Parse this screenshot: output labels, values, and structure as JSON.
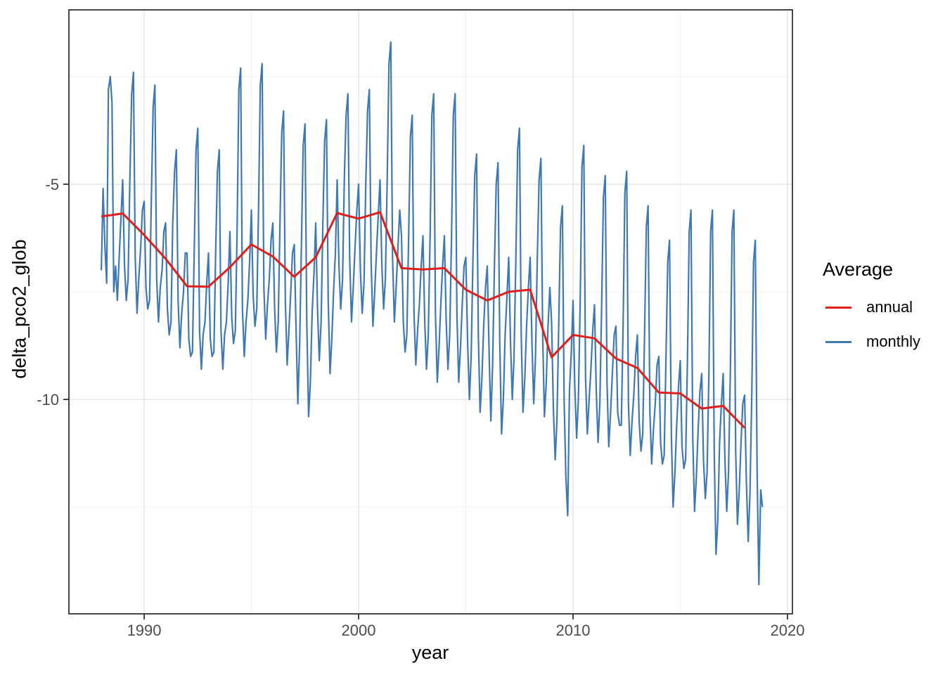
{
  "chart_data": {
    "type": "line",
    "title": "",
    "xlabel": "year",
    "ylabel": "delta_pco2_glob",
    "legend_title": "Average",
    "legend_position": "right",
    "grid": "major-and-minor",
    "xlim": [
      1986.49,
      2020.23
    ],
    "ylim": [
      -14.98,
      -0.95
    ],
    "x_major_ticks": [
      1990,
      2000,
      2010,
      2020
    ],
    "x_minor_ticks": [
      1995,
      2005,
      2015
    ],
    "y_major_ticks": [
      -5,
      -10
    ],
    "y_minor_ticks": [
      -2.5,
      -7.5,
      -12.5
    ],
    "colors": {
      "annual": "#df201a",
      "monthly": "#3e79b4"
    },
    "series": [
      {
        "name": "annual",
        "color": "#df201a",
        "years": [
          1988,
          1989,
          1990,
          1991,
          1992,
          1993,
          1994,
          1995,
          1996,
          1997,
          1998,
          1999,
          2000,
          2001,
          2002,
          2003,
          2004,
          2005,
          2006,
          2007,
          2008,
          2009,
          2010,
          2011,
          2012,
          2013,
          2014,
          2015,
          2016,
          2017,
          2018
        ],
        "values": [
          -5.75,
          -5.68,
          -6.18,
          -6.73,
          -7.37,
          -7.38,
          -6.93,
          -6.4,
          -6.68,
          -7.15,
          -6.7,
          -5.67,
          -5.8,
          -5.65,
          -6.95,
          -6.98,
          -6.95,
          -7.45,
          -7.7,
          -7.5,
          -7.45,
          -9.02,
          -8.5,
          -8.58,
          -9.05,
          -9.27,
          -9.84,
          -9.86,
          -10.21,
          -10.15,
          -10.66
        ]
      },
      {
        "name": "monthly",
        "color": "#3e79b4",
        "start_year": 1988,
        "values_by_year": [
          {
            "year": 1988,
            "values": [
              -7.0,
              -5.1,
              -6.4,
              -7.3,
              -2.8,
              -2.5,
              -3.1,
              -7.5,
              -6.9,
              -7.7,
              -6.7,
              -5.8
            ]
          },
          {
            "year": 1989,
            "values": [
              -4.9,
              -6.9,
              -7.7,
              -7.2,
              -4.9,
              -2.9,
              -2.4,
              -6.7,
              -8.0,
              -7.2,
              -6.5,
              -5.6
            ]
          },
          {
            "year": 1990,
            "values": [
              -5.4,
              -7.4,
              -7.9,
              -7.7,
              -5.4,
              -3.2,
              -2.7,
              -7.2,
              -8.2,
              -7.4,
              -7.0,
              -6.1
            ]
          },
          {
            "year": 1991,
            "values": [
              -5.9,
              -7.9,
              -8.5,
              -8.2,
              -5.9,
              -4.7,
              -4.2,
              -7.7,
              -8.8,
              -8.0,
              -7.5,
              -6.6
            ]
          },
          {
            "year": 1992,
            "values": [
              -6.6,
              -8.6,
              -9.0,
              -8.9,
              -6.6,
              -4.2,
              -3.7,
              -8.4,
              -9.3,
              -8.5,
              -8.2,
              -7.3
            ]
          },
          {
            "year": 1993,
            "values": [
              -6.6,
              -8.6,
              -9.0,
              -8.9,
              -6.6,
              -4.7,
              -4.2,
              -8.4,
              -9.3,
              -8.5,
              -8.2,
              -7.3
            ]
          },
          {
            "year": 1994,
            "values": [
              -6.1,
              -8.1,
              -8.7,
              -8.4,
              -6.1,
              -2.8,
              -2.3,
              -7.9,
              -9.0,
              -8.2,
              -7.7,
              -6.8
            ]
          },
          {
            "year": 1995,
            "values": [
              -5.6,
              -7.6,
              -8.3,
              -7.9,
              -5.6,
              -2.7,
              -2.2,
              -7.4,
              -8.6,
              -7.8,
              -7.2,
              -6.3
            ]
          },
          {
            "year": 1996,
            "values": [
              -5.9,
              -7.9,
              -8.9,
              -8.2,
              -5.9,
              -3.8,
              -3.3,
              -7.7,
              -9.2,
              -8.4,
              -7.5,
              -6.6
            ]
          },
          {
            "year": 1997,
            "values": [
              -6.4,
              -8.4,
              -10.1,
              -8.7,
              -6.4,
              -4.1,
              -3.6,
              -8.2,
              -10.4,
              -9.6,
              -8.0,
              -7.1
            ]
          },
          {
            "year": 1998,
            "values": [
              -5.9,
              -7.9,
              -9.1,
              -8.2,
              -5.9,
              -4.0,
              -3.5,
              -7.7,
              -9.4,
              -8.6,
              -7.5,
              -6.6
            ]
          },
          {
            "year": 1999,
            "values": [
              -4.9,
              -6.9,
              -7.9,
              -7.2,
              -4.9,
              -3.4,
              -2.9,
              -6.7,
              -8.2,
              -7.4,
              -6.5,
              -5.6
            ]
          },
          {
            "year": 2000,
            "values": [
              -5.0,
              -7.0,
              -8.0,
              -7.3,
              -5.0,
              -3.3,
              -2.8,
              -6.8,
              -8.3,
              -7.5,
              -6.6,
              -5.7
            ]
          },
          {
            "year": 2001,
            "values": [
              -4.9,
              -6.9,
              -7.9,
              -7.2,
              -4.9,
              -2.2,
              -1.7,
              -6.7,
              -8.2,
              -7.4,
              -6.5,
              -5.6
            ]
          },
          {
            "year": 2002,
            "values": [
              -6.2,
              -8.2,
              -8.9,
              -8.5,
              -6.2,
              -3.9,
              -3.4,
              -8.0,
              -9.2,
              -8.4,
              -7.8,
              -6.9
            ]
          },
          {
            "year": 2003,
            "values": [
              -6.2,
              -8.2,
              -9.3,
              -8.5,
              -6.2,
              -3.4,
              -2.9,
              -8.0,
              -9.6,
              -8.8,
              -7.8,
              -6.9
            ]
          },
          {
            "year": 2004,
            "values": [
              -6.2,
              -8.2,
              -9.3,
              -8.5,
              -6.2,
              -3.4,
              -2.9,
              -8.0,
              -9.6,
              -8.8,
              -7.8,
              -6.9
            ]
          },
          {
            "year": 2005,
            "values": [
              -6.7,
              -8.7,
              -10.0,
              -9.0,
              -6.7,
              -4.8,
              -4.3,
              -8.5,
              -10.3,
              -9.5,
              -8.3,
              -7.4
            ]
          },
          {
            "year": 2006,
            "values": [
              -6.9,
              -8.9,
              -10.5,
              -9.2,
              -6.9,
              -5.0,
              -4.5,
              -8.7,
              -10.8,
              -10.0,
              -8.5,
              -7.6
            ]
          },
          {
            "year": 2007,
            "values": [
              -6.7,
              -8.7,
              -10.0,
              -9.0,
              -6.7,
              -4.2,
              -3.7,
              -8.5,
              -10.3,
              -9.5,
              -8.3,
              -7.4
            ]
          },
          {
            "year": 2008,
            "values": [
              -6.7,
              -8.7,
              -10.1,
              -9.0,
              -6.7,
              -4.9,
              -4.4,
              -8.5,
              -10.4,
              -9.6,
              -8.3,
              -7.4
            ]
          },
          {
            "year": 2009,
            "values": [
              -8.2,
              -10.2,
              -11.4,
              -10.5,
              -8.2,
              -6.0,
              -5.5,
              -10.0,
              -11.8,
              -12.7,
              -9.8,
              -8.9
            ]
          },
          {
            "year": 2010,
            "values": [
              -7.7,
              -9.7,
              -10.9,
              -10.0,
              -7.7,
              -4.6,
              -4.1,
              -9.5,
              -10.8,
              -10.0,
              -9.3,
              -8.4
            ]
          },
          {
            "year": 2011,
            "values": [
              -7.8,
              -9.8,
              -11.0,
              -10.1,
              -7.8,
              -5.3,
              -4.8,
              -9.6,
              -11.1,
              -10.3,
              -9.4,
              -8.5
            ]
          },
          {
            "year": 2012,
            "values": [
              -8.3,
              -10.3,
              -10.6,
              -10.6,
              -8.3,
              -5.2,
              -4.7,
              -10.1,
              -11.3,
              -10.5,
              -9.9,
              -9.0
            ]
          },
          {
            "year": 2013,
            "values": [
              -8.5,
              -10.5,
              -11.2,
              -10.8,
              -8.5,
              -6.0,
              -5.5,
              -10.3,
              -11.5,
              -10.7,
              -10.1,
              -9.2
            ]
          },
          {
            "year": 2014,
            "values": [
              -9.0,
              -11.0,
              -11.5,
              -11.3,
              -9.0,
              -6.8,
              -6.3,
              -10.8,
              -12.5,
              -11.7,
              -10.6,
              -9.7
            ]
          },
          {
            "year": 2015,
            "values": [
              -9.1,
              -11.1,
              -11.6,
              -11.4,
              -9.1,
              -6.1,
              -5.6,
              -10.9,
              -12.6,
              -11.8,
              -10.7,
              -9.8
            ]
          },
          {
            "year": 2016,
            "values": [
              -9.4,
              -11.4,
              -12.3,
              -11.7,
              -9.4,
              -6.1,
              -5.6,
              -11.2,
              -13.6,
              -12.8,
              -11.0,
              -10.1
            ]
          },
          {
            "year": 2017,
            "values": [
              -9.4,
              -11.4,
              -12.6,
              -11.7,
              -9.4,
              -6.1,
              -5.6,
              -11.2,
              -12.9,
              -12.1,
              -11.0,
              -10.1
            ]
          },
          {
            "year": 2018,
            "values": [
              -9.9,
              -11.9,
              -13.3,
              -12.2,
              -9.9,
              -6.8,
              -6.3,
              -11.7,
              -14.3,
              -12.1,
              -12.5
            ]
          }
        ]
      }
    ]
  },
  "axis_tick_labels": {
    "x": [
      "1990",
      "2000",
      "2010",
      "2020"
    ],
    "y": [
      "-5",
      "-10"
    ]
  },
  "legend": {
    "title": "Average",
    "items": [
      {
        "label": "annual",
        "color": "#df201a"
      },
      {
        "label": "monthly",
        "color": "#3e79b4"
      }
    ]
  },
  "style_colors": {
    "panel_border": "#333333",
    "major_grid": "#e3e3e3",
    "minor_grid": "#efefef",
    "tick_label": "#4d4d4d",
    "tick_mark": "#333333"
  }
}
